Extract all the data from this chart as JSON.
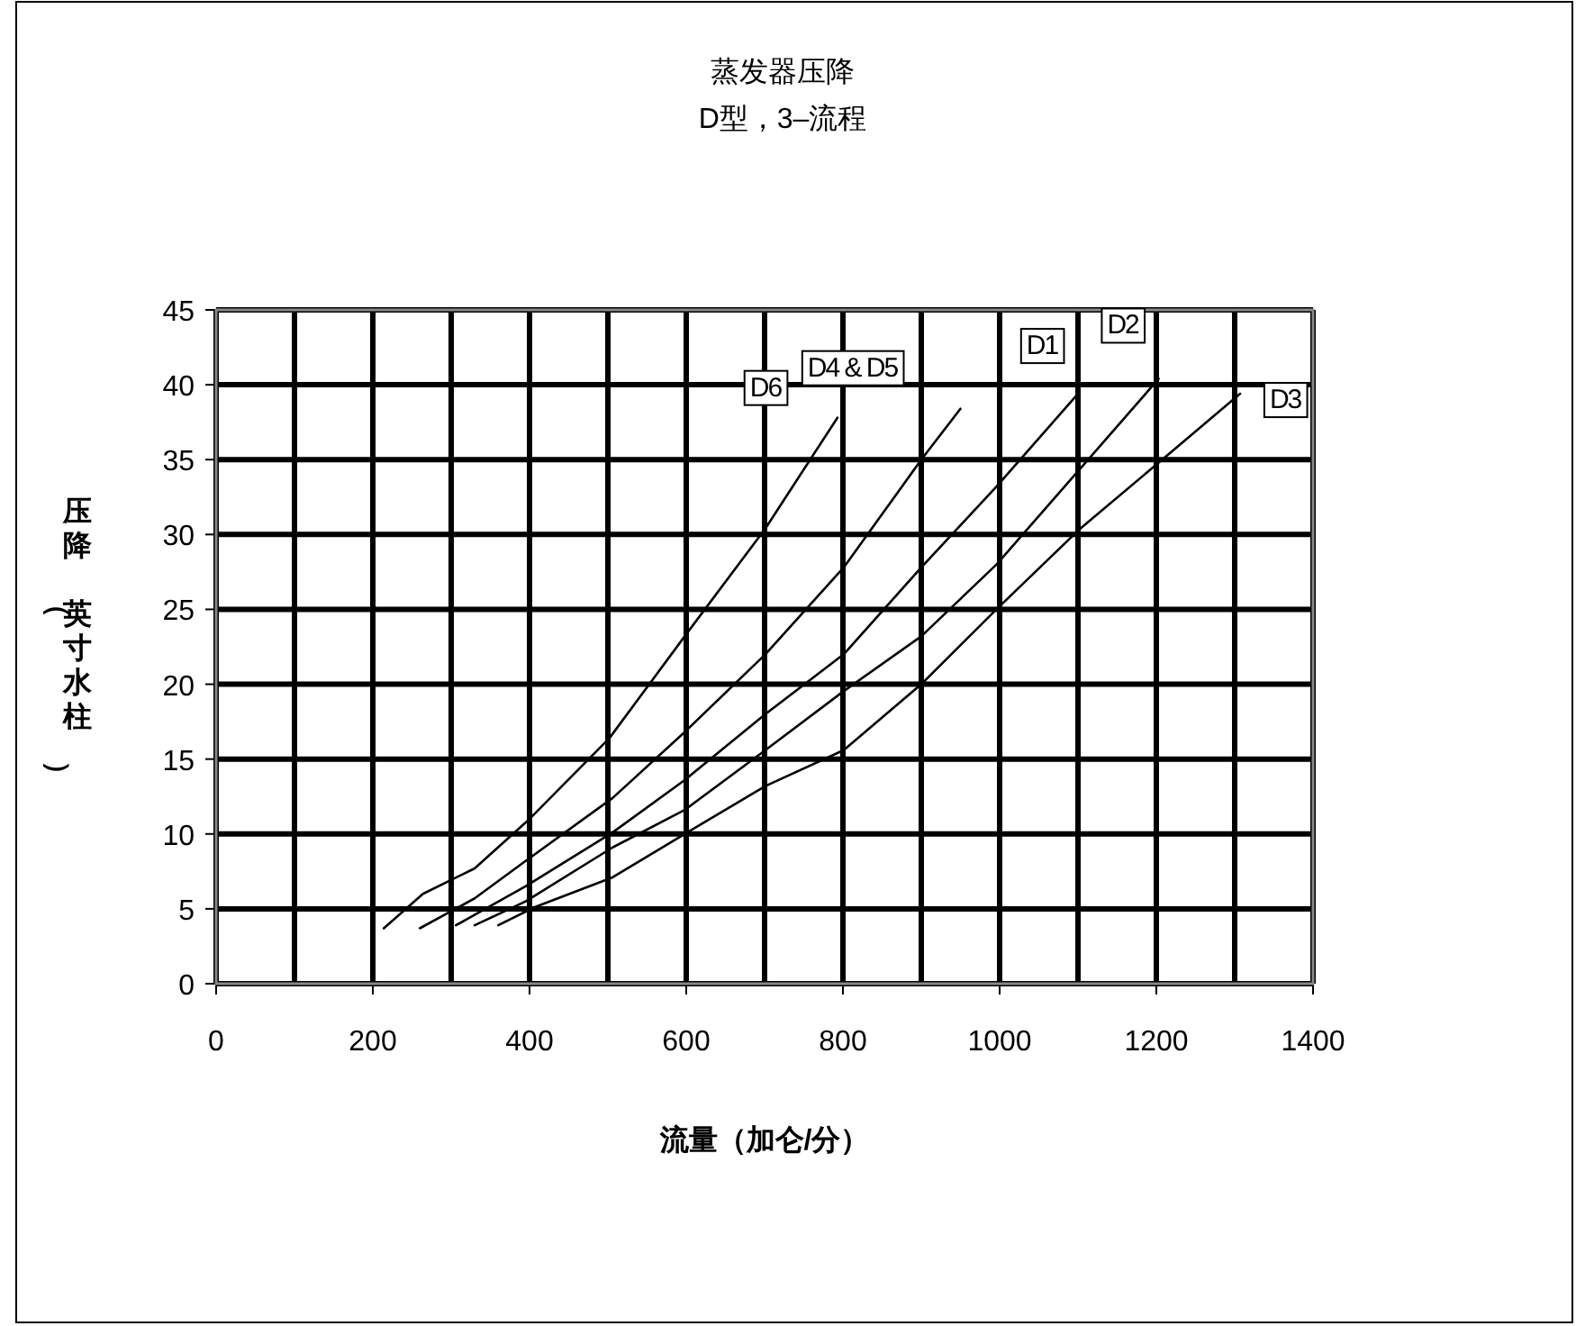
{
  "chart_data": {
    "type": "line",
    "title": "蒸发器压降",
    "subtitle": "D型，3–流程",
    "xlabel": "流量（加仑/分）",
    "ylabel": "压降（英寸水柱）",
    "xlim": [
      0,
      1400
    ],
    "xticks": [
      0,
      {
        "value": 100,
        "label": null
      },
      200,
      {
        "value": 300,
        "label": null
      },
      400,
      {
        "value": 500,
        "label": null
      },
      600,
      {
        "value": 700,
        "label": null
      },
      800,
      {
        "value": 900,
        "label": null
      },
      1000,
      {
        "value": 1100,
        "label": null
      },
      1200,
      {
        "value": 1300,
        "label": null
      },
      1400
    ],
    "ylim": [
      0,
      45
    ],
    "yticks": [
      0,
      5,
      10,
      15,
      20,
      25,
      30,
      35,
      40,
      45
    ],
    "grid": true,
    "marker": "none",
    "line_style": "solid",
    "series": [
      {
        "name": "D6",
        "color": "#000000",
        "x": [
          214,
          264,
          330,
          398,
          502,
          598,
          701,
          793
        ],
        "values": [
          3.7,
          6.0,
          7.7,
          10.9,
          16.4,
          23.2,
          30.4,
          37.8
        ]
      },
      {
        "name": "D4 & D5",
        "color": "#000000",
        "x": [
          260,
          330,
          395,
          506,
          598,
          701,
          801,
          900,
          950
        ],
        "values": [
          3.7,
          5.7,
          8.2,
          12.4,
          16.8,
          22.0,
          27.8,
          35.0,
          38.4
        ]
      },
      {
        "name": "D1",
        "color": "#000000",
        "x": [
          306,
          395,
          506,
          598,
          701,
          801,
          900,
          996,
          1100
        ],
        "values": [
          3.9,
          6.5,
          10.1,
          13.6,
          18.0,
          22.0,
          27.8,
          33.2,
          39.4
        ]
      },
      {
        "name": "D2",
        "color": "#000000",
        "x": [
          330,
          395,
          506,
          598,
          701,
          800,
          900,
          996,
          1103,
          1203
        ],
        "values": [
          3.9,
          5.5,
          9.1,
          11.6,
          15.6,
          19.5,
          23.2,
          28.0,
          34.4,
          40.4
        ]
      },
      {
        "name": "D3",
        "color": "#000000",
        "x": [
          360,
          406,
          506,
          598,
          701,
          801,
          900,
          996,
          1103,
          1203,
          1307
        ],
        "values": [
          3.9,
          5.1,
          7.1,
          10.0,
          13.2,
          15.6,
          20.0,
          25.0,
          30.4,
          34.8,
          39.4
        ]
      }
    ]
  }
}
